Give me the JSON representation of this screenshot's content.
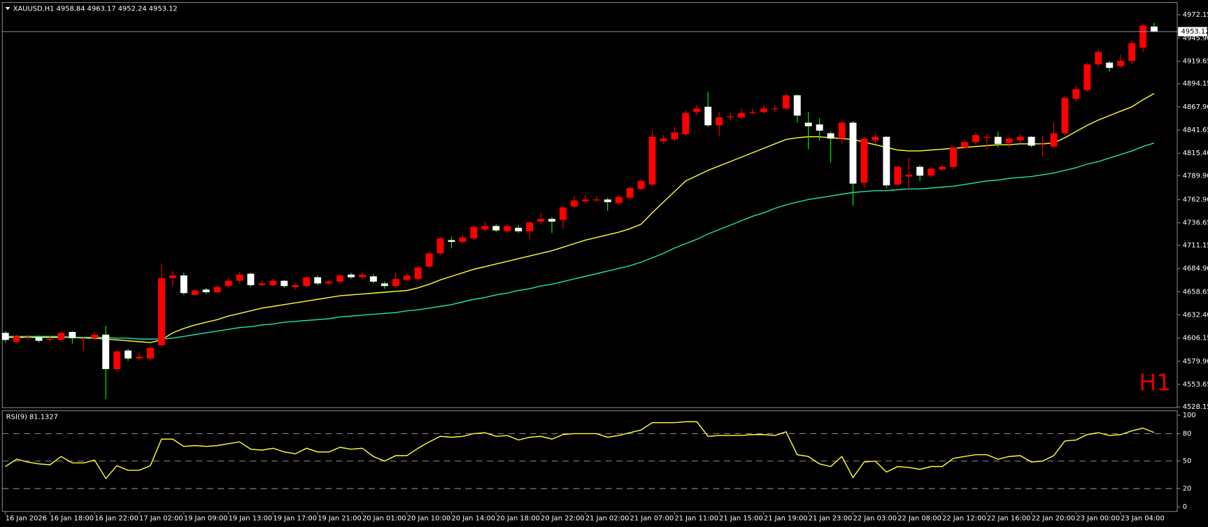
{
  "chart_data": [
    {
      "type": "candlestick",
      "title": "XAUUSD,H1  4958.84 4963.17 4952.24 4953.12",
      "watermark": "H1",
      "categories": [
        "16 Jan 2026",
        null,
        null,
        null,
        "16 Jan 18:00",
        null,
        null,
        null,
        "16 Jan 22:00",
        null,
        null,
        null,
        "17 Jan 02:00",
        null,
        null,
        null,
        "19 Jan 09:00",
        null,
        null,
        null,
        "19 Jan 13:00",
        null,
        null,
        null,
        "19 Jan 17:00",
        null,
        null,
        null,
        "19 Jan 21:00",
        null,
        null,
        null,
        "20 Jan 01:00",
        null,
        null,
        null,
        "20 Jan 10:00",
        null,
        null,
        null,
        "20 Jan 14:00",
        null,
        null,
        null,
        "20 Jan 18:00",
        null,
        null,
        null,
        "20 Jan 22:00",
        null,
        null,
        null,
        "21 Jan 02:00",
        null,
        null,
        null,
        "21 Jan 07:00",
        null,
        null,
        null,
        "21 Jan 11:00",
        null,
        null,
        null,
        "21 Jan 15:00",
        null,
        null,
        null,
        "21 Jan 19:00",
        null,
        null,
        null,
        "21 Jan 23:00",
        null,
        null,
        null,
        "22 Jan 03:00",
        null,
        null,
        null,
        "22 Jan 08:00",
        null,
        null,
        null,
        "22 Jan 12:00",
        null,
        null,
        null,
        "22 Jan 16:00",
        null,
        null,
        null,
        "22 Jan 20:00",
        null,
        null,
        null,
        "23 Jan 00:00",
        null,
        null,
        null,
        "23 Jan 04:00",
        null,
        null,
        null
      ],
      "open": [
        4612,
        4602,
        4606,
        4607,
        4604,
        4604,
        4613,
        4606,
        4606,
        4610,
        4571,
        4592,
        4583,
        4583,
        4598,
        4674,
        4677,
        4655,
        4661,
        4658,
        4665,
        4671,
        4679,
        4666,
        4666,
        4671,
        4664,
        4665,
        4675,
        4668,
        4670,
        4678,
        4675,
        4676,
        4668,
        4665,
        4672,
        4673,
        4687,
        4702,
        4717,
        4715,
        4719,
        4729,
        4733,
        4727,
        4731,
        4727,
        4738,
        4741,
        4740,
        4755,
        4761,
        4762,
        4763,
        4759,
        4765,
        4775,
        4780,
        4829,
        4831,
        4837,
        4862,
        4868,
        4847,
        4856,
        4856,
        4861,
        4862,
        4866,
        4866,
        4881,
        4850,
        4848,
        4838,
        4832,
        4850,
        4782,
        4830,
        4834,
        4780,
        4789,
        4800,
        4790,
        4797,
        4800,
        4822,
        4828,
        4833,
        4834,
        4827,
        4830,
        4834,
        4825,
        4823,
        4838,
        4877,
        4887,
        4916,
        4918,
        4914,
        4920,
        4935,
        4958.84
      ],
      "high": [
        4614,
        4610,
        4610,
        4609,
        4608,
        4614,
        4614,
        4608,
        4613,
        4620,
        4593,
        4594,
        4590,
        4597,
        4690,
        4682,
        4680,
        4662,
        4663,
        4666,
        4674,
        4681,
        4680,
        4671,
        4673,
        4672,
        4668,
        4677,
        4677,
        4672,
        4679,
        4680,
        4680,
        4679,
        4670,
        4680,
        4680,
        4688,
        4704,
        4721,
        4721,
        4723,
        4734,
        4738,
        4735,
        4735,
        4734,
        4739,
        4748,
        4743,
        4756,
        4767,
        4768,
        4767,
        4765,
        4768,
        4778,
        4786,
        4841,
        4836,
        4845,
        4864,
        4870,
        4885,
        4862,
        4862,
        4866,
        4866,
        4870,
        4870,
        4883,
        4882,
        4862,
        4855,
        4840,
        4852,
        4852,
        4834,
        4838,
        4835,
        4802,
        4810,
        4802,
        4800,
        4803,
        4824,
        4831,
        4839,
        4837,
        4840,
        4834,
        4837,
        4835,
        4835,
        4850,
        4880,
        4892,
        4918,
        4933,
        4920,
        4927,
        4943,
        4962,
        4963.17
      ],
      "low": [
        4601,
        4600,
        4604,
        4601,
        4602,
        4602,
        4600,
        4592,
        4603,
        4537,
        4568,
        4580,
        4581,
        4581,
        4597,
        4665,
        4655,
        4654,
        4656,
        4657,
        4663,
        4668,
        4664,
        4665,
        4664,
        4663,
        4661,
        4663,
        4666,
        4666,
        4668,
        4673,
        4673,
        4668,
        4662,
        4663,
        4670,
        4671,
        4685,
        4700,
        4708,
        4713,
        4717,
        4727,
        4726,
        4725,
        4725,
        4718,
        4735,
        4725,
        4730,
        4753,
        4758,
        4760,
        4750,
        4757,
        4763,
        4773,
        4778,
        4826,
        4829,
        4835,
        4858,
        4845,
        4835,
        4853,
        4854,
        4859,
        4860,
        4862,
        4864,
        4850,
        4820,
        4830,
        4805,
        4826,
        4756,
        4776,
        4826,
        4776,
        4778,
        4775,
        4784,
        4788,
        4795,
        4797,
        4820,
        4825,
        4820,
        4822,
        4822,
        4827,
        4822,
        4812,
        4821,
        4836,
        4874,
        4885,
        4913,
        4908,
        4912,
        4916,
        4930,
        4952.24
      ],
      "close": [
        4604,
        4608,
        4607,
        4603,
        4605,
        4612,
        4606,
        4606,
        4610,
        4571,
        4591,
        4583,
        4585,
        4595,
        4674,
        4677,
        4657,
        4660,
        4658,
        4664,
        4671,
        4678,
        4666,
        4668,
        4671,
        4665,
        4666,
        4675,
        4668,
        4670,
        4677,
        4675,
        4678,
        4670,
        4665,
        4673,
        4677,
        4686,
        4702,
        4719,
        4715,
        4720,
        4732,
        4733,
        4728,
        4733,
        4727,
        4737,
        4741,
        4738,
        4754,
        4762,
        4763,
        4763,
        4760,
        4766,
        4776,
        4784,
        4834,
        4832,
        4839,
        4861,
        4866,
        4847,
        4856,
        4857,
        4861,
        4862,
        4866,
        4866,
        4881,
        4858,
        4846,
        4841,
        4832,
        4850,
        4781,
        4832,
        4834,
        4779,
        4800,
        4791,
        4790,
        4798,
        4800,
        4822,
        4828,
        4836,
        4834,
        4826,
        4832,
        4834,
        4824,
        4826,
        4838,
        4878,
        4888,
        4916,
        4930,
        4912,
        4920,
        4940,
        4960,
        4953.12
      ],
      "up_color": "#ff0000",
      "down_color": "#ffffff",
      "up_wick_color": "#ff0000",
      "down_wick_color": "#00ff00",
      "series": [
        {
          "color": "#ffff33",
          "values": [
            4607,
            4607,
            4607,
            4607,
            4607,
            4607,
            4607,
            4606,
            4606,
            4605,
            4604,
            4603,
            4602,
            4601,
            4604,
            4612,
            4617,
            4621,
            4624,
            4627,
            4631,
            4634,
            4637,
            4640,
            4642,
            4644,
            4646,
            4648,
            4650,
            4652,
            4654,
            4655,
            4656,
            4657,
            4658,
            4659,
            4660,
            4663,
            4667,
            4672,
            4676,
            4680,
            4684,
            4687,
            4690,
            4693,
            4696,
            4699,
            4702,
            4705,
            4709,
            4713,
            4717,
            4720,
            4723,
            4726,
            4730,
            4735,
            4748,
            4760,
            4772,
            4784,
            4790,
            4796,
            4801,
            4806,
            4811,
            4816,
            4821,
            4826,
            4831,
            4833,
            4834,
            4834,
            4833,
            4832,
            4831,
            4828,
            4825,
            4822,
            4819,
            4818,
            4818,
            4819,
            4820,
            4821,
            4822,
            4823,
            4824,
            4825,
            4825,
            4826,
            4826,
            4826,
            4827,
            4833,
            4840,
            4847,
            4853,
            4858,
            4863,
            4868,
            4876,
            4883
          ]
        },
        {
          "color": "#20e0b0",
          "values": [
            4608,
            4608,
            4608,
            4608,
            4608,
            4608,
            4607,
            4607,
            4607,
            4607,
            4606,
            4606,
            4605,
            4605,
            4605,
            4606,
            4608,
            4610,
            4612,
            4614,
            4616,
            4618,
            4619,
            4621,
            4622,
            4624,
            4625,
            4626,
            4627,
            4628,
            4630,
            4631,
            4632,
            4633,
            4634,
            4635,
            4637,
            4638,
            4640,
            4642,
            4644,
            4647,
            4650,
            4652,
            4655,
            4657,
            4660,
            4662,
            4665,
            4667,
            4670,
            4673,
            4676,
            4679,
            4682,
            4685,
            4688,
            4692,
            4697,
            4702,
            4708,
            4713,
            4718,
            4724,
            4729,
            4734,
            4739,
            4744,
            4748,
            4753,
            4757,
            4760,
            4763,
            4765,
            4767,
            4769,
            4771,
            4772,
            4773,
            4773,
            4774,
            4775,
            4775,
            4776,
            4777,
            4778,
            4780,
            4782,
            4784,
            4785,
            4787,
            4788,
            4789,
            4791,
            4793,
            4796,
            4799,
            4803,
            4806,
            4810,
            4814,
            4818,
            4823,
            4827
          ]
        }
      ],
      "ylim": [
        4527.3,
        4986.1
      ],
      "yticks": [
        4972.15,
        {
          "value": 4945.9,
          "label": "4945.90"
        },
        4919.65,
        4894.15,
        {
          "value": 4867.9,
          "label": "4867.90"
        },
        4841.65,
        {
          "value": 4815.4,
          "label": "4815.40"
        },
        {
          "value": 4789.9,
          "label": "4789.90"
        },
        {
          "value": 4762.9,
          "label": "4762.90"
        },
        4736.65,
        4711.15,
        {
          "value": 4684.9,
          "label": "4684.90"
        },
        4658.65,
        {
          "value": 4632.4,
          "label": "4632.40"
        },
        4606.15,
        {
          "value": 4579.9,
          "label": "4579.90"
        },
        4553.65,
        4528.15
      ],
      "price_line": 4953.12
    },
    {
      "type": "line",
      "title": "RSI(9) 81.1327",
      "color": "#ffff33",
      "values": [
        44,
        52,
        49,
        47,
        46,
        55,
        48,
        48,
        51,
        31,
        45,
        40,
        40,
        45,
        74,
        74,
        66,
        67,
        66,
        67,
        69,
        71,
        63,
        62,
        64,
        60,
        58,
        64,
        60,
        60,
        65,
        63,
        64,
        55,
        50,
        56,
        56,
        64,
        71,
        77,
        76,
        77,
        80,
        81,
        77,
        78,
        73,
        76,
        77,
        74,
        79,
        80,
        80,
        80,
        76,
        78,
        81,
        84,
        92,
        92,
        92,
        93,
        93,
        77,
        78,
        78,
        78,
        79,
        79,
        78,
        82,
        57,
        55,
        47,
        44,
        55,
        32,
        49,
        50,
        38,
        44,
        43,
        41,
        44,
        44,
        53,
        55,
        57,
        57,
        52,
        55,
        56,
        49,
        50,
        56,
        72,
        73,
        79,
        81,
        78,
        79,
        83,
        86,
        81.1327
      ],
      "ylim": [
        -5,
        105
      ],
      "yticks": [
        100,
        80,
        50,
        20,
        0
      ],
      "levels": [
        80,
        50,
        20
      ]
    }
  ]
}
